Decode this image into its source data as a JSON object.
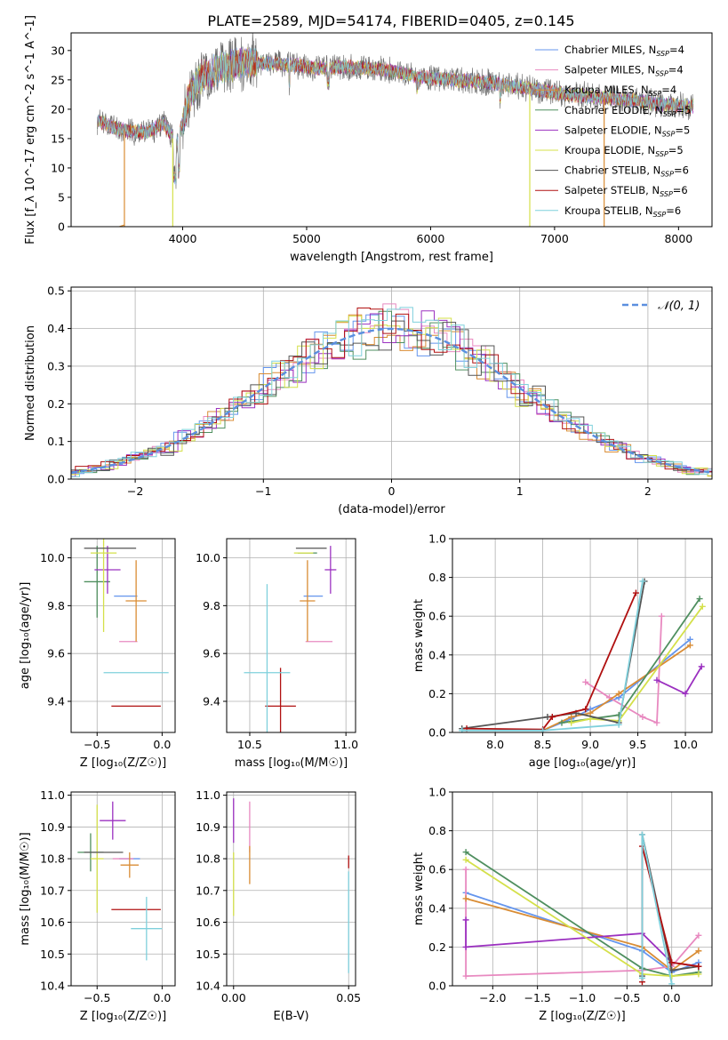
{
  "figure": {
    "title": "PLATE=2589, MJD=54174, FIBERID=0405, z=0.145"
  },
  "chart_data": [
    {
      "id": "spectrum",
      "type": "line",
      "xlabel": "wavelength [Angstrom, rest frame]",
      "ylabel": "Flux [f_λ 10^-17 erg cm^-2 s^-1 A^-1]",
      "xlim": [
        3100,
        8270
      ],
      "ylim": [
        0,
        33
      ],
      "xticks": [
        4000,
        5000,
        6000,
        7000,
        8000
      ],
      "yticks": [
        0,
        5,
        10,
        15,
        20,
        25,
        30
      ],
      "grid": false,
      "legend_position": "top-right",
      "legend": [
        {
          "label": "Chabrier MILES, N",
          "sub": "SSP",
          "tail": "=4",
          "color": "#6495ed"
        },
        {
          "label": "Salpeter MILES, N",
          "sub": "SSP",
          "tail": "=4",
          "color": "#e889c0"
        },
        {
          "label": "Kroupa MILES, N",
          "sub": "SSP",
          "tail": "=4",
          "color": "#d98c34"
        },
        {
          "label": "Chabrier ELODIE, N",
          "sub": "SSP",
          "tail": "=5",
          "color": "#4f8f5f"
        },
        {
          "label": "Salpeter ELODIE, N",
          "sub": "SSP",
          "tail": "=5",
          "color": "#9b30c0"
        },
        {
          "label": "Kroupa ELODIE, N",
          "sub": "SSP",
          "tail": "=5",
          "color": "#d4e04a"
        },
        {
          "label": "Chabrier STELIB, N",
          "sub": "SSP",
          "tail": "=6",
          "color": "#555555"
        },
        {
          "label": "Salpeter STELIB, N",
          "sub": "SSP",
          "tail": "=6",
          "color": "#b01010"
        },
        {
          "label": "Kroupa STELIB, N",
          "sub": "SSP",
          "tail": "=6",
          "color": "#7fd0dc"
        }
      ],
      "continuum": [
        [
          3310,
          18.0
        ],
        [
          3500,
          16.5
        ],
        [
          3700,
          16.0
        ],
        [
          3850,
          17.5
        ],
        [
          3950,
          14.0
        ],
        [
          4050,
          22.0
        ],
        [
          4150,
          25.5
        ],
        [
          4300,
          27.0
        ],
        [
          4500,
          28.0
        ],
        [
          4700,
          27.8
        ],
        [
          4900,
          27.5
        ],
        [
          5100,
          27.0
        ],
        [
          5300,
          27.2
        ],
        [
          5500,
          27.0
        ],
        [
          5700,
          26.5
        ],
        [
          5900,
          25.5
        ],
        [
          6100,
          25.2
        ],
        [
          6300,
          24.8
        ],
        [
          6500,
          24.5
        ],
        [
          6700,
          23.8
        ],
        [
          6900,
          23.2
        ],
        [
          7100,
          22.5
        ],
        [
          7300,
          22.2
        ],
        [
          7500,
          21.8
        ],
        [
          7700,
          21.3
        ],
        [
          7900,
          20.8
        ],
        [
          8100,
          20.5
        ]
      ],
      "data_range": [
        3310,
        8120
      ]
    },
    {
      "id": "residuals",
      "type": "step",
      "xlabel": "(data-model)/error",
      "ylabel": "Normed distribution",
      "xlim": [
        -2.5,
        2.5
      ],
      "ylim": [
        0,
        0.51
      ],
      "xticks": [
        -2,
        -1,
        0,
        1,
        2
      ],
      "yticks": [
        0.0,
        0.1,
        0.2,
        0.3,
        0.4,
        0.5
      ],
      "grid": true,
      "legend_position": "top-right",
      "legend": [
        {
          "label": "𝒩(0, 1)",
          "color": "#5b8fdf"
        }
      ],
      "bin_width": 0.1,
      "series_colors": [
        "#6495ed",
        "#e889c0",
        "#d98c34",
        "#4f8f5f",
        "#9b30c0",
        "#d4e04a",
        "#555555",
        "#b01010",
        "#7fd0dc"
      ]
    },
    {
      "id": "age-vs-z",
      "type": "errorbar",
      "xlabel": "Z [log₁₀(Z/Z☉)]",
      "ylabel": "age  [log₁₀(age/yr)]",
      "xlim": [
        -0.7,
        0.1
      ],
      "ylim": [
        9.27,
        10.08
      ],
      "xticks": [
        -0.5,
        0.0
      ],
      "xticklabels": [
        "−0.5",
        "0.0"
      ],
      "yticks": [
        9.4,
        9.6,
        9.8,
        10.0
      ],
      "grid": true,
      "points": [
        {
          "x": -0.28,
          "y": 9.84,
          "xerr": 0.09,
          "yerr": 0.0,
          "color": "#6495ed"
        },
        {
          "x": -0.26,
          "y": 9.65,
          "xerr": 0.07,
          "yerr": 0.0,
          "color": "#e889c0"
        },
        {
          "x": -0.2,
          "y": 9.82,
          "xerr": 0.08,
          "yerr": 0.17,
          "color": "#d98c34"
        },
        {
          "x": -0.5,
          "y": 9.9,
          "xerr": 0.1,
          "yerr": 0.15,
          "color": "#4f8f5f"
        },
        {
          "x": -0.42,
          "y": 9.95,
          "xerr": 0.1,
          "yerr": 0.1,
          "color": "#9b30c0"
        },
        {
          "x": -0.45,
          "y": 10.02,
          "xerr": 0.1,
          "yerr": 0.33,
          "color": "#d4e04a"
        },
        {
          "x": -0.4,
          "y": 10.04,
          "xerr": 0.2,
          "yerr": 0.0,
          "color": "#555555"
        },
        {
          "x": -0.2,
          "y": 9.38,
          "xerr": 0.19,
          "yerr": 0.0,
          "color": "#b01010"
        },
        {
          "x": -0.2,
          "y": 9.52,
          "xerr": 0.25,
          "yerr": 0.0,
          "color": "#7fd0dc"
        }
      ]
    },
    {
      "id": "age-vs-mass",
      "type": "errorbar",
      "xlabel": "mass [log₁₀(M/M☉)]",
      "ylabel": "",
      "xlim": [
        10.38,
        11.05
      ],
      "ylim": [
        9.27,
        10.08
      ],
      "xticks": [
        10.5,
        11.0
      ],
      "xticklabels": [
        "10.5",
        "11.0"
      ],
      "yticks": [
        9.4,
        9.6,
        9.8,
        10.0
      ],
      "grid": true,
      "points": [
        {
          "x": 10.83,
          "y": 9.84,
          "xerr": 0.05,
          "yerr": 0.0,
          "color": "#6495ed"
        },
        {
          "x": 10.86,
          "y": 9.65,
          "xerr": 0.07,
          "yerr": 0.0,
          "color": "#e889c0"
        },
        {
          "x": 10.8,
          "y": 9.82,
          "xerr": 0.04,
          "yerr": 0.17,
          "color": "#d98c34"
        },
        {
          "x": 10.8,
          "y": 10.02,
          "xerr": 0.05,
          "yerr": 0.0,
          "color": "#4f8f5f"
        },
        {
          "x": 10.92,
          "y": 9.95,
          "xerr": 0.03,
          "yerr": 0.1,
          "color": "#9b30c0"
        },
        {
          "x": 10.78,
          "y": 10.02,
          "xerr": 0.05,
          "yerr": 0.0,
          "color": "#d4e04a"
        },
        {
          "x": 10.82,
          "y": 10.04,
          "xerr": 0.08,
          "yerr": 0.0,
          "color": "#555555"
        },
        {
          "x": 10.66,
          "y": 9.38,
          "xerr": 0.08,
          "yerr": 0.16,
          "color": "#b01010"
        },
        {
          "x": 10.59,
          "y": 9.52,
          "xerr": 0.12,
          "yerr": 0.37,
          "color": "#7fd0dc"
        }
      ]
    },
    {
      "id": "massweight-vs-age",
      "type": "line",
      "xlabel": "age  [log₁₀(age/yr)]",
      "ylabel": "mass weight",
      "xlim": [
        7.55,
        10.28
      ],
      "ylim": [
        0,
        1.0
      ],
      "xticks": [
        8.0,
        8.5,
        9.0,
        9.5,
        10.0
      ],
      "yticks": [
        0.0,
        0.2,
        0.4,
        0.6,
        0.8,
        1.0
      ],
      "grid": true,
      "series": [
        {
          "color": "#6495ed",
          "x": [
            8.5,
            8.8,
            9.0,
            9.3,
            10.05
          ],
          "y": [
            0.01,
            0.07,
            0.12,
            0.18,
            0.48
          ]
        },
        {
          "color": "#e889c0",
          "x": [
            8.95,
            9.2,
            9.55,
            9.7,
            9.75
          ],
          "y": [
            0.26,
            0.18,
            0.08,
            0.05,
            0.6
          ]
        },
        {
          "color": "#d98c34",
          "x": [
            8.5,
            8.8,
            9.0,
            9.3,
            10.05
          ],
          "y": [
            0.01,
            0.08,
            0.1,
            0.2,
            0.45
          ]
        },
        {
          "color": "#4f8f5f",
          "x": [
            8.7,
            9.3,
            10.15
          ],
          "y": [
            0.05,
            0.09,
            0.69
          ]
        },
        {
          "color": "#9b30c0",
          "x": [
            9.7,
            10.0,
            10.17
          ],
          "y": [
            0.27,
            0.2,
            0.34
          ]
        },
        {
          "color": "#d4e04a",
          "x": [
            8.8,
            9.0,
            9.3,
            10.18
          ],
          "y": [
            0.05,
            0.07,
            0.06,
            0.65
          ]
        },
        {
          "color": "#555555",
          "x": [
            7.65,
            8.55,
            8.85,
            9.3,
            9.57
          ],
          "y": [
            0.02,
            0.08,
            0.1,
            0.05,
            0.78
          ]
        },
        {
          "color": "#b01010",
          "x": [
            7.7,
            8.5,
            8.6,
            8.95,
            9.48
          ],
          "y": [
            0.02,
            0.015,
            0.08,
            0.12,
            0.72
          ]
        },
        {
          "color": "#7fd0dc",
          "x": [
            7.65,
            8.5,
            9.3,
            9.55
          ],
          "y": [
            0.01,
            0.01,
            0.04,
            0.78
          ]
        }
      ]
    },
    {
      "id": "mass-vs-z",
      "type": "errorbar",
      "xlabel": "Z [log₁₀(Z/Z☉)]",
      "ylabel": "mass [log₁₀(M/M☉)]",
      "xlim": [
        -0.7,
        0.1
      ],
      "ylim": [
        10.4,
        11.01
      ],
      "xticks": [
        -0.5,
        0.0
      ],
      "xticklabels": [
        "−0.5",
        "0.0"
      ],
      "yticks": [
        10.4,
        10.5,
        10.6,
        10.7,
        10.8,
        10.9,
        11.0
      ],
      "grid": true,
      "points": [
        {
          "x": -0.25,
          "y": 10.8,
          "xerr": 0.08,
          "yerr": 0.0,
          "color": "#6495ed"
        },
        {
          "x": -0.3,
          "y": 10.8,
          "xerr": 0.08,
          "yerr": 0.0,
          "color": "#e889c0"
        },
        {
          "x": -0.25,
          "y": 10.78,
          "xerr": 0.07,
          "yerr": 0.04,
          "color": "#d98c34"
        },
        {
          "x": -0.55,
          "y": 10.82,
          "xerr": 0.1,
          "yerr": 0.06,
          "color": "#4f8f5f"
        },
        {
          "x": -0.38,
          "y": 10.92,
          "xerr": 0.1,
          "yerr": 0.06,
          "color": "#9b30c0"
        },
        {
          "x": -0.5,
          "y": 10.8,
          "xerr": 0.05,
          "yerr": 0.17,
          "color": "#d4e04a"
        },
        {
          "x": -0.45,
          "y": 10.82,
          "xerr": 0.15,
          "yerr": 0.0,
          "color": "#555555"
        },
        {
          "x": -0.2,
          "y": 10.64,
          "xerr": 0.19,
          "yerr": 0.0,
          "color": "#b01010"
        },
        {
          "x": -0.12,
          "y": 10.58,
          "xerr": 0.12,
          "yerr": 0.1,
          "color": "#7fd0dc"
        }
      ]
    },
    {
      "id": "mass-vs-ebv",
      "type": "errorbar",
      "xlabel": "E(B-V)",
      "ylabel": "",
      "xlim": [
        -0.003,
        0.053
      ],
      "ylim": [
        10.4,
        11.01
      ],
      "xticks": [
        0.0,
        0.05
      ],
      "xticklabels": [
        "0.00",
        "0.05"
      ],
      "yticks": [
        10.4,
        10.5,
        10.6,
        10.7,
        10.8,
        10.9,
        11.0
      ],
      "grid": true,
      "points": [
        {
          "x": 0.0,
          "y": 10.92,
          "xerr": 0.0,
          "yerr": 0.07,
          "color": "#9b30c0"
        },
        {
          "x": 0.0,
          "y": 10.72,
          "xerr": 0.0,
          "yerr": 0.1,
          "color": "#d4e04a"
        },
        {
          "x": 0.007,
          "y": 10.9,
          "xerr": 0.0,
          "yerr": 0.08,
          "color": "#e889c0"
        },
        {
          "x": 0.007,
          "y": 10.78,
          "xerr": 0.0,
          "yerr": 0.06,
          "color": "#d98c34"
        },
        {
          "x": 0.05,
          "y": 10.79,
          "xerr": 0.0,
          "yerr": 0.02,
          "color": "#b01010"
        },
        {
          "x": 0.05,
          "y": 10.6,
          "xerr": 0.0,
          "yerr": 0.16,
          "color": "#7fd0dc"
        }
      ]
    },
    {
      "id": "massweight-vs-z",
      "type": "line",
      "xlabel": "Z [log₁₀(Z/Z☉)]",
      "ylabel": "mass weight",
      "xlim": [
        -2.45,
        0.45
      ],
      "ylim": [
        0,
        1.0
      ],
      "xticks": [
        -2.0,
        -1.5,
        -1.0,
        -0.5,
        0.0
      ],
      "xticklabels": [
        "−2.0",
        "−1.5",
        "−1.0",
        "−0.5",
        "0.0"
      ],
      "yticks": [
        0.0,
        0.2,
        0.4,
        0.6,
        0.8,
        1.0
      ],
      "grid": true,
      "series": [
        {
          "color": "#6495ed",
          "x": [
            -2.3,
            -0.33,
            0.0,
            0.3
          ],
          "y": [
            0.48,
            0.18,
            0.07,
            0.12
          ]
        },
        {
          "color": "#e889c0",
          "x": [
            -2.3,
            -2.3,
            -0.33,
            0.0,
            0.3
          ],
          "y": [
            0.6,
            0.05,
            0.08,
            0.1,
            0.26
          ]
        },
        {
          "color": "#d98c34",
          "x": [
            -2.3,
            -0.33,
            0.0,
            0.3
          ],
          "y": [
            0.45,
            0.2,
            0.08,
            0.18
          ]
        },
        {
          "color": "#4f8f5f",
          "x": [
            -2.3,
            -0.33,
            0.0,
            0.3
          ],
          "y": [
            0.69,
            0.09,
            0.05,
            0.07
          ]
        },
        {
          "color": "#9b30c0",
          "x": [
            -2.3,
            -2.3,
            -0.33,
            0.0,
            0.3
          ],
          "y": [
            0.34,
            0.2,
            0.27,
            0.12,
            0.1
          ]
        },
        {
          "color": "#d4e04a",
          "x": [
            -2.3,
            -0.33,
            0.0,
            0.3
          ],
          "y": [
            0.65,
            0.06,
            0.05,
            0.06
          ]
        },
        {
          "color": "#555555",
          "x": [
            -0.33,
            -0.33,
            0.0,
            0.3
          ],
          "y": [
            0.05,
            0.78,
            0.08,
            0.1
          ]
        },
        {
          "color": "#b01010",
          "x": [
            -0.33,
            -0.33,
            0.0,
            0.3
          ],
          "y": [
            0.02,
            0.72,
            0.12,
            0.1
          ]
        },
        {
          "color": "#7fd0dc",
          "x": [
            -0.33,
            -0.33,
            0.0
          ],
          "y": [
            0.04,
            0.78,
            0.01
          ]
        }
      ]
    }
  ]
}
